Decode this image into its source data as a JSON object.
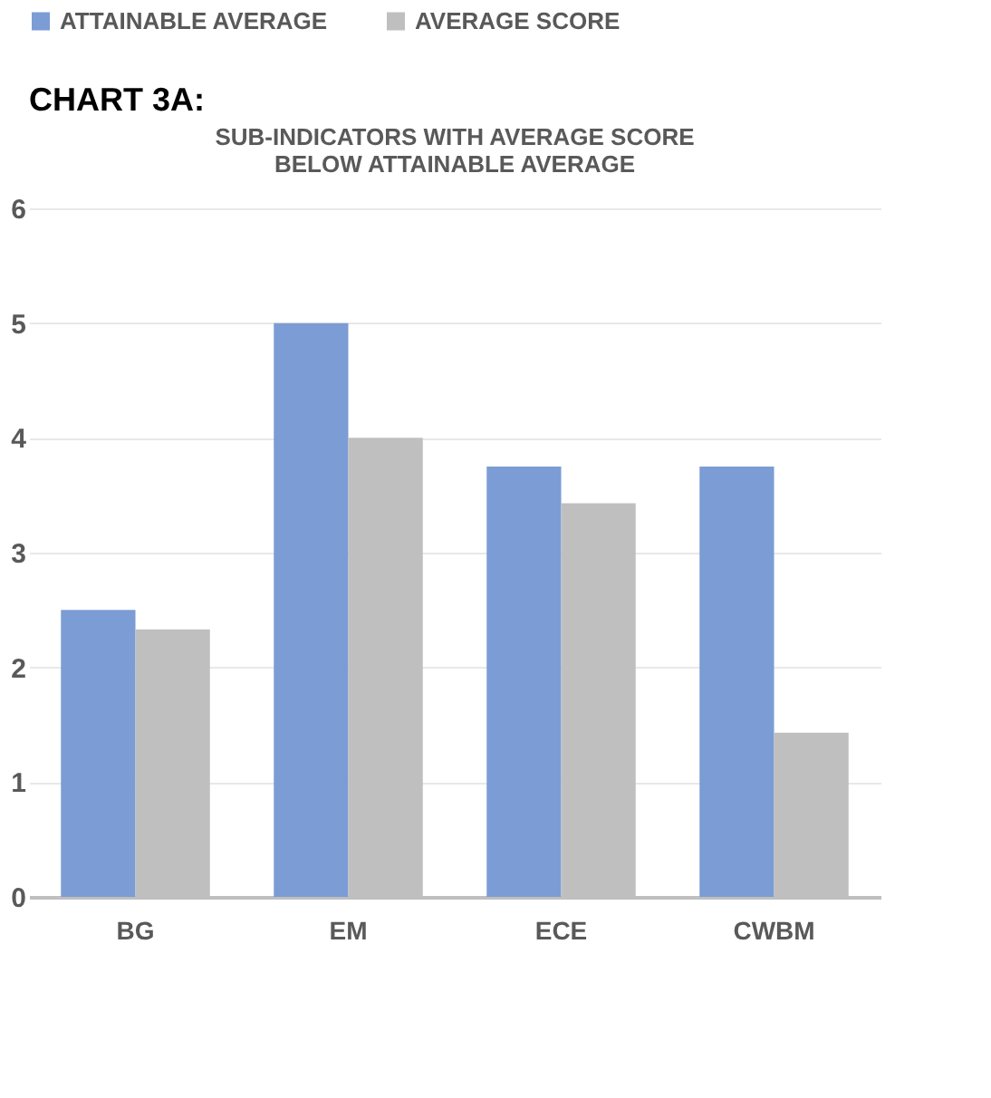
{
  "chart_data": {
    "type": "bar",
    "title": [
      "SUB-INDICATORS WITH AVERAGE SCORE",
      "BELOW ATTAINABLE AVERAGE"
    ],
    "annotations": [
      "CHART 3A:"
    ],
    "categories": [
      "BG",
      "EM",
      "ECE",
      "CWBM"
    ],
    "series": [
      {
        "name": "ATTAINABLE AVERAGE",
        "color": "#7b9cd4",
        "values": [
          2.5,
          5,
          3.75,
          3.75
        ]
      },
      {
        "name": "AVERAGE SCORE",
        "color": "#bfbfbf",
        "values": [
          2.33,
          4,
          3.43,
          1.43
        ]
      }
    ],
    "ylim": [
      0,
      6
    ],
    "yticks": [
      0,
      1,
      2,
      3,
      4,
      5,
      6
    ],
    "grid": "y",
    "legend": "top"
  }
}
